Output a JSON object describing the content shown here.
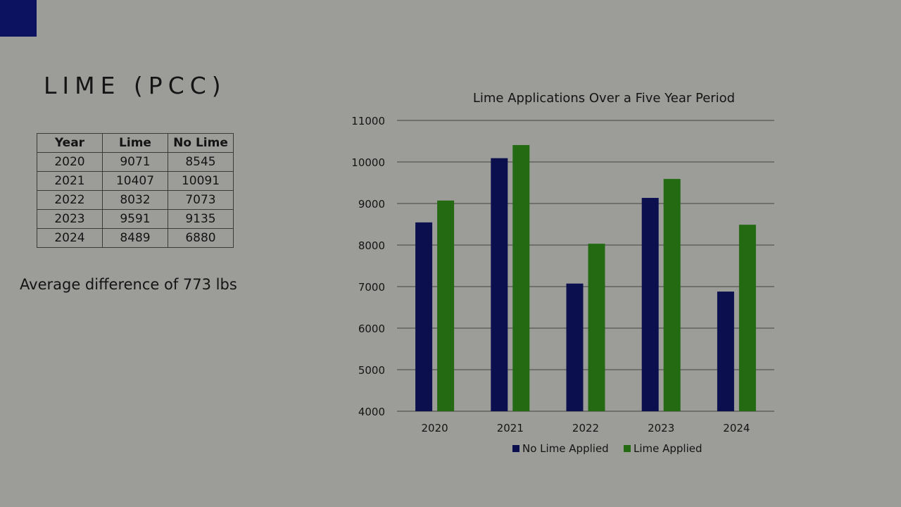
{
  "slide": {
    "title": "LIME (PCC)",
    "note": "Average difference of 773 lbs",
    "accent_color": "#0d1260"
  },
  "table": {
    "headers": [
      "Year",
      "Lime",
      "No Lime"
    ],
    "rows": [
      [
        "2020",
        "9071",
        "8545"
      ],
      [
        "2021",
        "10407",
        "10091"
      ],
      [
        "2022",
        "8032",
        "7073"
      ],
      [
        "2023",
        "9591",
        "9135"
      ],
      [
        "2024",
        "8489",
        "6880"
      ]
    ]
  },
  "chart_data": {
    "type": "bar",
    "title": "Lime Applications Over a Five Year Period",
    "categories": [
      "2020",
      "2021",
      "2022",
      "2023",
      "2024"
    ],
    "series": [
      {
        "name": "No Lime Applied",
        "values": [
          8545,
          10091,
          7073,
          9135,
          6880
        ],
        "color": "#0c0f4e"
      },
      {
        "name": "Lime Applied",
        "values": [
          9071,
          10407,
          8032,
          9591,
          8489
        ],
        "color": "#236a12"
      }
    ],
    "ylim": [
      4000,
      11000
    ],
    "yticks": [
      "4000",
      "5000",
      "6000",
      "7000",
      "8000",
      "9000",
      "10000",
      "11000"
    ],
    "grid": true,
    "legend": "bottom",
    "xlabel": "",
    "ylabel": ""
  }
}
